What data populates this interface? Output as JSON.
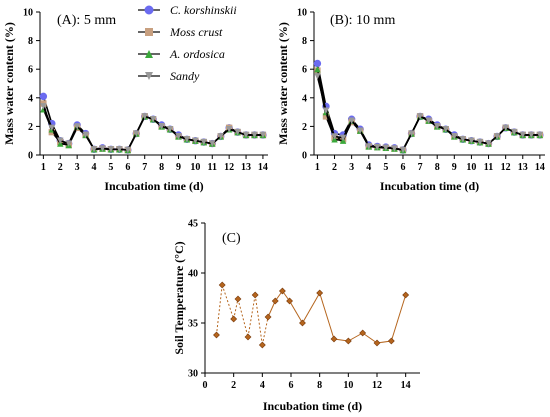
{
  "chart_data": [
    {
      "type": "line",
      "panel_label": "(A): 5 mm",
      "xlabel": "Incubation time (d)",
      "ylabel": "Mass water content (%)",
      "xlim": [
        0.8,
        14.3
      ],
      "ylim": [
        0,
        10
      ],
      "xticks": [
        1,
        2,
        3,
        4,
        5,
        6,
        7,
        8,
        9,
        10,
        11,
        12,
        13,
        14
      ],
      "yticks": [
        0,
        2,
        4,
        6,
        8,
        10
      ],
      "legend_placement": "top-right",
      "series": [
        {
          "name": "C. korshinskii",
          "color": "#6b6bf0",
          "marker": "circle",
          "x": [
            1,
            1.5,
            2,
            2.5,
            3,
            3.5,
            4,
            4.5,
            5,
            5.5,
            6,
            6.5,
            7,
            7.5,
            8,
            8.5,
            9,
            9.5,
            10,
            10.5,
            11,
            11.5,
            12,
            12.5,
            13,
            13.5,
            14
          ],
          "y": [
            4.1,
            2.2,
            1.0,
            0.8,
            2.1,
            1.5,
            0.4,
            0.5,
            0.4,
            0.4,
            0.35,
            1.5,
            2.7,
            2.5,
            2.1,
            1.8,
            1.4,
            1.1,
            1.0,
            0.9,
            0.8,
            1.3,
            1.9,
            1.6,
            1.4,
            1.4,
            1.4
          ]
        },
        {
          "name": "Moss crust",
          "color": "#c8a080",
          "marker": "square",
          "x": [
            1,
            1.5,
            2,
            2.5,
            3,
            3.5,
            4,
            4.5,
            5,
            5.5,
            6,
            6.5,
            7,
            7.5,
            8,
            8.5,
            9,
            9.5,
            10,
            10.5,
            11,
            11.5,
            12,
            12.5,
            13,
            13.5,
            14
          ],
          "y": [
            3.6,
            1.6,
            0.9,
            0.7,
            1.9,
            1.4,
            0.4,
            0.45,
            0.4,
            0.4,
            0.35,
            1.5,
            2.7,
            2.5,
            2.0,
            1.8,
            1.3,
            1.1,
            1.0,
            0.9,
            0.8,
            1.3,
            1.9,
            1.6,
            1.4,
            1.4,
            1.4
          ]
        },
        {
          "name": "A. ordosica",
          "color": "#3aa83a",
          "marker": "triangle-up",
          "x": [
            1,
            1.5,
            2,
            2.5,
            3,
            3.5,
            4,
            4.5,
            5,
            5.5,
            6,
            6.5,
            7,
            7.5,
            8,
            8.5,
            9,
            9.5,
            10,
            10.5,
            11,
            11.5,
            12,
            12.5,
            13,
            13.5,
            14
          ],
          "y": [
            3.2,
            1.8,
            0.8,
            0.7,
            2.0,
            1.4,
            0.4,
            0.45,
            0.4,
            0.4,
            0.35,
            1.5,
            2.7,
            2.5,
            2.0,
            1.8,
            1.3,
            1.1,
            1.0,
            0.9,
            0.8,
            1.3,
            1.8,
            1.6,
            1.4,
            1.4,
            1.4
          ]
        },
        {
          "name": "Sandy",
          "color": "#999999",
          "marker": "triangle-down",
          "x": [
            1,
            1.5,
            2,
            2.5,
            3,
            3.5,
            4,
            4.5,
            5,
            5.5,
            6,
            6.5,
            7,
            7.5,
            8,
            8.5,
            9,
            9.5,
            10,
            10.5,
            11,
            11.5,
            12,
            12.5,
            13,
            13.5,
            14
          ],
          "y": [
            3.4,
            1.9,
            1.0,
            0.8,
            2.0,
            1.4,
            0.4,
            0.45,
            0.4,
            0.4,
            0.35,
            1.5,
            2.7,
            2.5,
            2.0,
            1.8,
            1.3,
            1.1,
            1.0,
            0.9,
            0.8,
            1.3,
            1.8,
            1.6,
            1.4,
            1.4,
            1.4
          ]
        }
      ]
    },
    {
      "type": "line",
      "panel_label": "(B): 10 mm",
      "xlabel": "Incubation time (d)",
      "ylabel": "Mass water content (%)",
      "xlim": [
        0.8,
        14.3
      ],
      "ylim": [
        0,
        10
      ],
      "xticks": [
        1,
        2,
        3,
        4,
        5,
        6,
        7,
        8,
        9,
        10,
        11,
        12,
        13,
        14
      ],
      "yticks": [
        0,
        2,
        4,
        6,
        8,
        10
      ],
      "series": [
        {
          "name": "C. korshinskii",
          "color": "#6b6bf0",
          "marker": "circle",
          "x": [
            1,
            1.5,
            2,
            2.5,
            3,
            3.5,
            4,
            4.5,
            5,
            5.5,
            6,
            6.5,
            7,
            7.5,
            8,
            8.5,
            9,
            9.5,
            10,
            10.5,
            11,
            11.5,
            12,
            12.5,
            13,
            13.5,
            14
          ],
          "y": [
            6.4,
            3.4,
            1.5,
            1.4,
            2.5,
            1.8,
            0.7,
            0.6,
            0.55,
            0.5,
            0.35,
            1.5,
            2.7,
            2.5,
            2.1,
            1.8,
            1.4,
            1.1,
            1.0,
            0.9,
            0.8,
            1.3,
            1.9,
            1.6,
            1.4,
            1.4,
            1.4
          ]
        },
        {
          "name": "Moss crust",
          "color": "#c8a080",
          "marker": "square",
          "x": [
            1,
            1.5,
            2,
            2.5,
            3,
            3.5,
            4,
            4.5,
            5,
            5.5,
            6,
            6.5,
            7,
            7.5,
            8,
            8.5,
            9,
            9.5,
            10,
            10.5,
            11,
            11.5,
            12,
            12.5,
            13,
            13.5,
            14
          ],
          "y": [
            5.9,
            2.7,
            1.2,
            1.1,
            2.3,
            1.7,
            0.6,
            0.55,
            0.5,
            0.45,
            0.35,
            1.5,
            2.7,
            2.4,
            2.0,
            1.8,
            1.3,
            1.1,
            1.0,
            0.9,
            0.8,
            1.3,
            1.9,
            1.6,
            1.4,
            1.4,
            1.4
          ]
        },
        {
          "name": "A. ordosica",
          "color": "#3aa83a",
          "marker": "triangle-up",
          "x": [
            1,
            1.5,
            2,
            2.5,
            3,
            3.5,
            4,
            4.5,
            5,
            5.5,
            6,
            6.5,
            7,
            7.5,
            8,
            8.5,
            9,
            9.5,
            10,
            10.5,
            11,
            11.5,
            12,
            12.5,
            13,
            13.5,
            14
          ],
          "y": [
            6.0,
            3.0,
            1.1,
            1.0,
            2.4,
            1.7,
            0.6,
            0.55,
            0.5,
            0.45,
            0.35,
            1.5,
            2.7,
            2.4,
            2.0,
            1.8,
            1.3,
            1.1,
            1.0,
            0.9,
            0.8,
            1.3,
            1.9,
            1.6,
            1.4,
            1.4,
            1.4
          ]
        },
        {
          "name": "Sandy",
          "color": "#999999",
          "marker": "triangle-down",
          "x": [
            1,
            1.5,
            2,
            2.5,
            3,
            3.5,
            4,
            4.5,
            5,
            5.5,
            6,
            6.5,
            7,
            7.5,
            8,
            8.5,
            9,
            9.5,
            10,
            10.5,
            11,
            11.5,
            12,
            12.5,
            13,
            13.5,
            14
          ],
          "y": [
            5.5,
            3.1,
            1.3,
            1.2,
            2.4,
            1.7,
            0.6,
            0.55,
            0.5,
            0.45,
            0.35,
            1.5,
            2.7,
            2.4,
            2.0,
            1.8,
            1.3,
            1.1,
            1.0,
            0.9,
            0.8,
            1.3,
            1.9,
            1.6,
            1.4,
            1.4,
            1.4
          ]
        }
      ]
    },
    {
      "type": "line",
      "panel_label": "(C)",
      "xlabel": "Incubation time (d)",
      "ylabel": "Soil Temperature (°C)",
      "xlim": [
        0,
        15
      ],
      "ylim": [
        30,
        45
      ],
      "xticks": [
        0,
        2,
        4,
        6,
        8,
        10,
        12,
        14
      ],
      "yticks": [
        30,
        35,
        40,
        45
      ],
      "series": [
        {
          "name": "",
          "color": "#b5651d",
          "marker": "diamond",
          "x": [
            0.8,
            1.2,
            2.0,
            2.3,
            3.0,
            3.5,
            4.0,
            4.4,
            4.9,
            5.4,
            5.9,
            6.8,
            8.0,
            9.0,
            10.0,
            11.0,
            12.0,
            13.0,
            14.0
          ],
          "y": [
            33.8,
            38.8,
            35.4,
            37.4,
            33.6,
            37.8,
            32.8,
            35.6,
            37.2,
            38.2,
            37.2,
            35.0,
            38.0,
            33.4,
            33.2,
            34.0,
            33.0,
            33.2,
            37.8
          ],
          "dashed_segments_until_x": 4.4
        }
      ]
    }
  ]
}
